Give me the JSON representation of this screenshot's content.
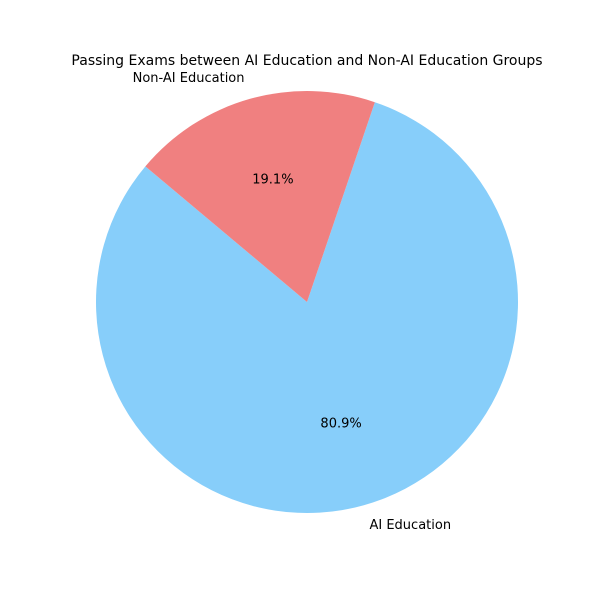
{
  "chart_data": {
    "type": "pie",
    "title": "Passing Exams between AI Education and Non-AI Education Groups",
    "categories": [
      "AI Education",
      "Non-AI Education"
    ],
    "values": [
      80.9,
      19.1
    ],
    "percent_labels": [
      "80.9%",
      "19.1%"
    ],
    "colors": [
      "#87CEFA",
      "#F08080"
    ],
    "start_angle_deg": 140,
    "direction": "counterclockwise",
    "legend": "none"
  }
}
